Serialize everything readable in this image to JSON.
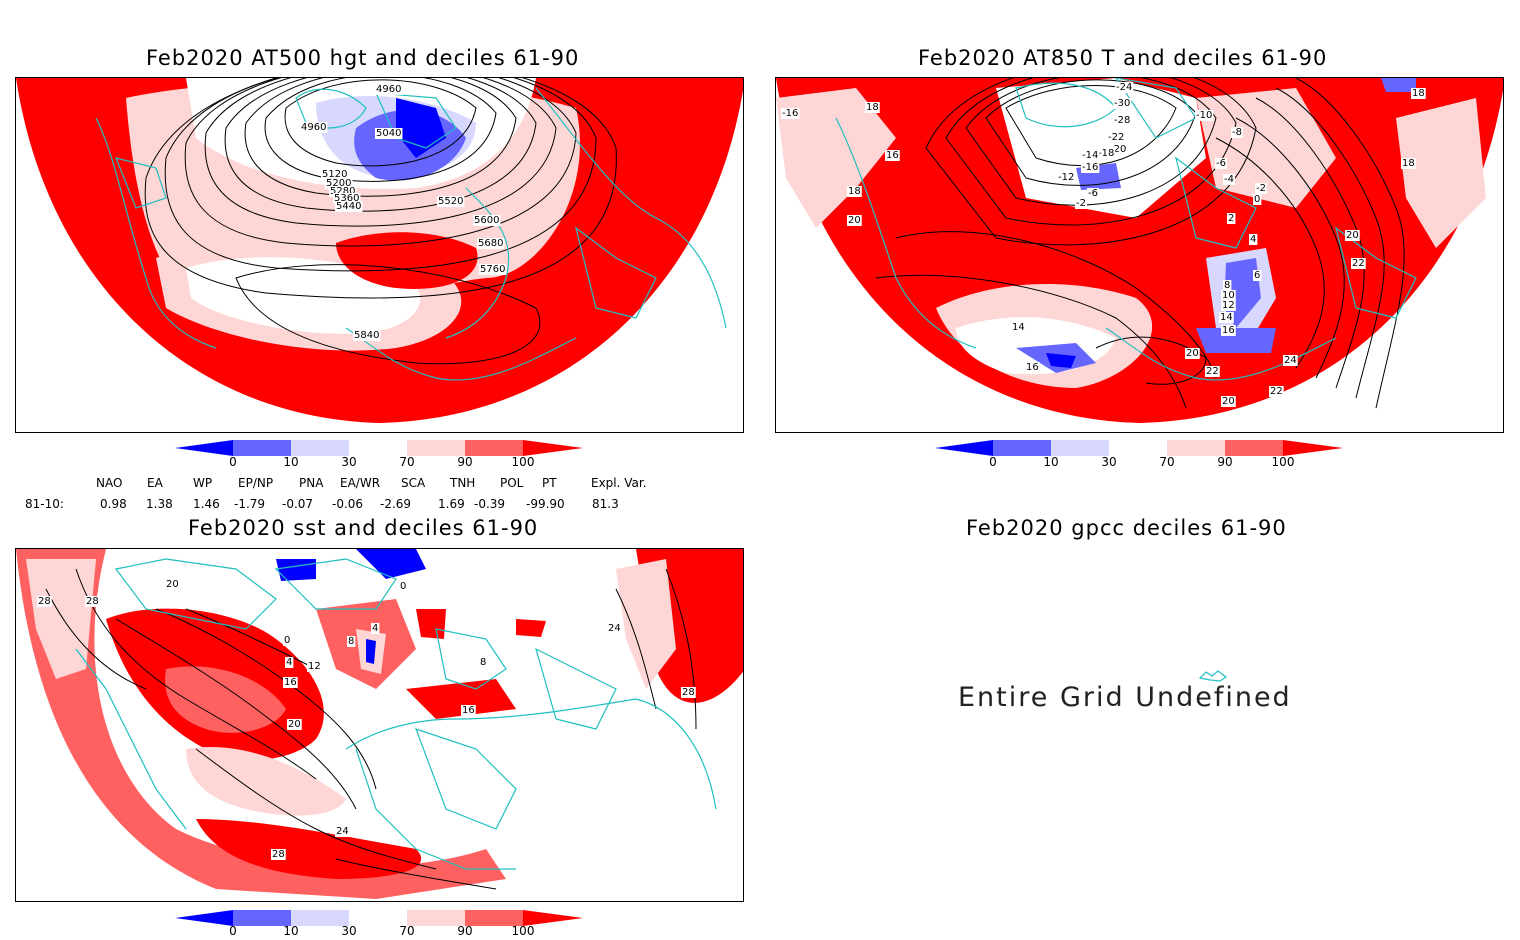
{
  "panels": {
    "hgt": {
      "title": "Feb2020 AT500 hgt and deciles 61-90",
      "contour_labels": [
        "4960",
        "4960",
        "5040",
        "5120",
        "5200",
        "5280",
        "5360",
        "5440",
        "5520",
        "5600",
        "5680",
        "5760",
        "5840"
      ]
    },
    "t850": {
      "title": "Feb2020 AT850 T and deciles 61-90",
      "contour_labels": [
        "-24",
        "-30",
        "-28",
        "-22",
        "-20",
        "-18",
        "-14",
        "-12",
        "-10",
        "-8",
        "-6",
        "-6",
        "-4",
        "-2",
        "-2",
        "0",
        "2",
        "4",
        "6",
        "8",
        "10",
        "12",
        "14",
        "16",
        "16",
        "18",
        "18",
        "18",
        "18",
        "20",
        "20",
        "20",
        "20",
        "22",
        "22",
        "22",
        "24",
        "-16",
        "16",
        "14",
        "-16"
      ]
    },
    "sst": {
      "title": "Feb2020 sst and deciles 61-90",
      "contour_labels": [
        "28",
        "28",
        "20",
        "24",
        "28",
        "24",
        "28",
        "20",
        "16",
        "12",
        "8",
        "4",
        "0",
        "4",
        "8",
        "0",
        "16"
      ]
    },
    "gpcc": {
      "title": "Feb2020 gpcc deciles 61-90",
      "message": "Entire Grid Undefined"
    }
  },
  "colorbar": {
    "labels": [
      "0",
      "10",
      "30",
      "70",
      "90",
      "100"
    ],
    "colors": [
      "#0000ff",
      "#6666ff",
      "#d8d8ff",
      "#ffffff",
      "#ffd6d6",
      "#ff6060",
      "#ff0000"
    ]
  },
  "teleconnections": {
    "headers": [
      "NAO",
      "EA",
      "WP",
      "EP/NP",
      "PNA",
      "EA/WR",
      "SCA",
      "TNH",
      "POL",
      "PT",
      "Expl. Var."
    ],
    "row_label": "81-10:",
    "values": [
      "0.98",
      "1.38",
      "1.46",
      "-1.79",
      "-0.07",
      "-0.06",
      "-2.69",
      "1.69",
      "-0.39",
      "-99.90",
      "81.3"
    ]
  },
  "map_colors": {
    "land_outline": "#20c0c0",
    "contour": "#000000",
    "high_decile": "#ff0000",
    "mid_high_decile": "#ff6060",
    "low_high_decile": "#ffd6d6",
    "low_decile": "#0000ff",
    "mid_low_decile": "#6666ff",
    "light_low_decile": "#d8d8ff"
  }
}
